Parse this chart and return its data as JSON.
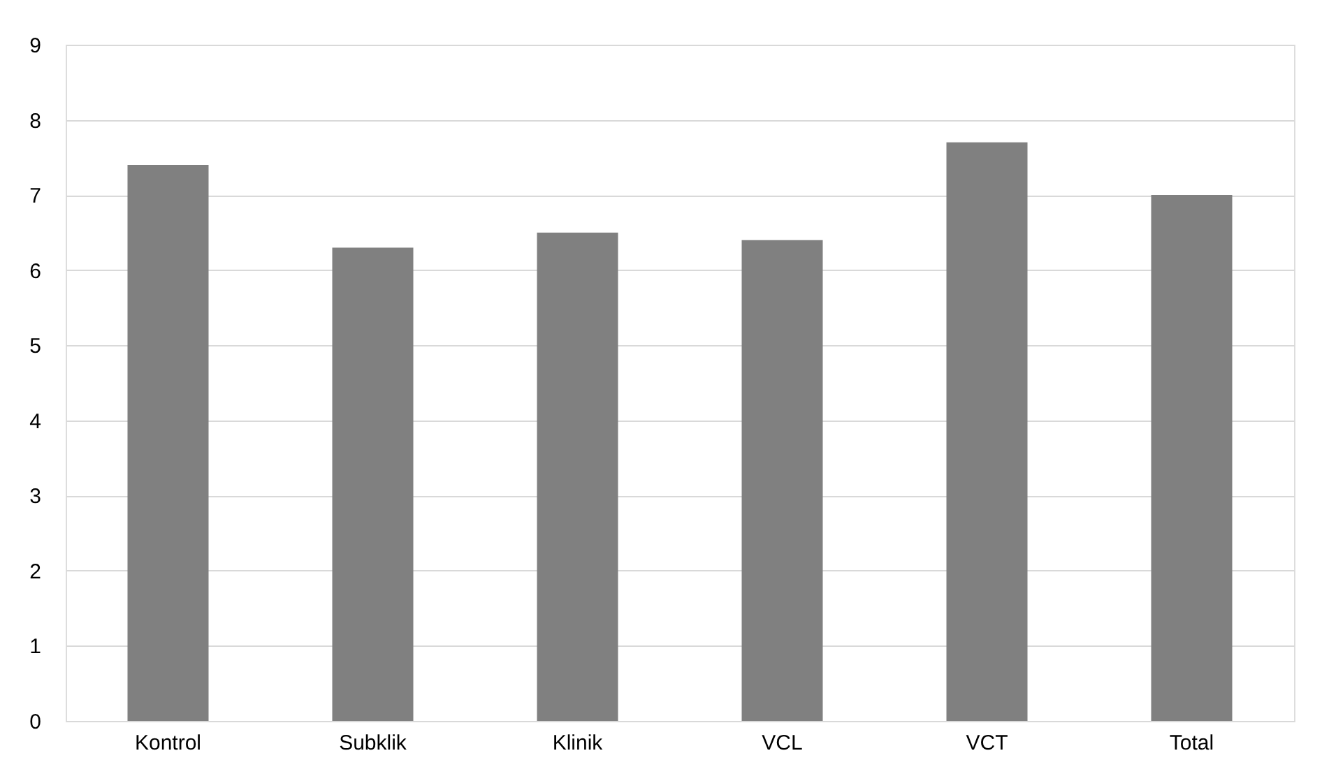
{
  "chart_data": {
    "type": "bar",
    "categories": [
      "Kontrol",
      "Subklik",
      "Klinik",
      "VCL",
      "VCT",
      "Total"
    ],
    "values": [
      7.4,
      6.3,
      6.5,
      6.4,
      7.7,
      7.0
    ],
    "color": "#808080",
    "ylim": [
      0,
      9
    ],
    "yticks": [
      0,
      1,
      2,
      3,
      4,
      5,
      6,
      7,
      8,
      9
    ],
    "grid": "y"
  }
}
